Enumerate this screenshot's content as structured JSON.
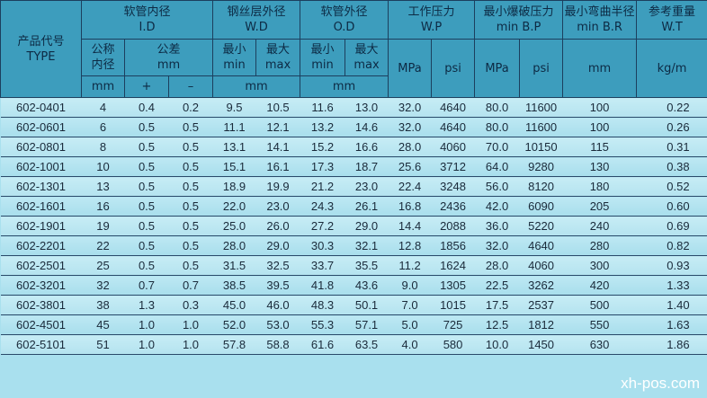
{
  "header": {
    "type_cn": "产品代号",
    "type_en": "TYPE",
    "id_cn": "软管内径",
    "id_en": "I.D",
    "wd_cn": "钢丝层外径",
    "wd_en": "W.D",
    "od_cn": "软管外径",
    "od_en": "O.D",
    "wp_cn": "工作压力",
    "wp_en": "W.P",
    "bp_cn": "最小爆破压力",
    "bp_en": "min B.P",
    "br_cn": "最小弯曲半径",
    "br_en": "min B.R",
    "wt_cn": "参考重量",
    "wt_en": "W.T",
    "nominal_cn1": "公称",
    "nominal_cn2": "内径",
    "tol_cn": "公差",
    "tol_unit": "mm",
    "min_cn": "最小",
    "min_en": "min",
    "max_cn": "最大",
    "max_en": "max",
    "mm": "mm",
    "plus": "+",
    "minus": "–",
    "mpa": "MPa",
    "psi": "psi",
    "kgm": "kg/m"
  },
  "rows": [
    [
      "602-0401",
      "4",
      "0.4",
      "0.2",
      "9.5",
      "10.5",
      "11.6",
      "13.0",
      "32.0",
      "4640",
      "80.0",
      "11600",
      "100",
      "0.22"
    ],
    [
      "602-0601",
      "6",
      "0.5",
      "0.5",
      "11.1",
      "12.1",
      "13.2",
      "14.6",
      "32.0",
      "4640",
      "80.0",
      "11600",
      "100",
      "0.26"
    ],
    [
      "602-0801",
      "8",
      "0.5",
      "0.5",
      "13.1",
      "14.1",
      "15.2",
      "16.6",
      "28.0",
      "4060",
      "70.0",
      "10150",
      "115",
      "0.31"
    ],
    [
      "602-1001",
      "10",
      "0.5",
      "0.5",
      "15.1",
      "16.1",
      "17.3",
      "18.7",
      "25.6",
      "3712",
      "64.0",
      "9280",
      "130",
      "0.38"
    ],
    [
      "602-1301",
      "13",
      "0.5",
      "0.5",
      "18.9",
      "19.9",
      "21.2",
      "23.0",
      "22.4",
      "3248",
      "56.0",
      "8120",
      "180",
      "0.52"
    ],
    [
      "602-1601",
      "16",
      "0.5",
      "0.5",
      "22.0",
      "23.0",
      "24.3",
      "26.1",
      "16.8",
      "2436",
      "42.0",
      "6090",
      "205",
      "0.60"
    ],
    [
      "602-1901",
      "19",
      "0.5",
      "0.5",
      "25.0",
      "26.0",
      "27.2",
      "29.0",
      "14.4",
      "2088",
      "36.0",
      "5220",
      "240",
      "0.69"
    ],
    [
      "602-2201",
      "22",
      "0.5",
      "0.5",
      "28.0",
      "29.0",
      "30.3",
      "32.1",
      "12.8",
      "1856",
      "32.0",
      "4640",
      "280",
      "0.82"
    ],
    [
      "602-2501",
      "25",
      "0.5",
      "0.5",
      "31.5",
      "32.5",
      "33.7",
      "35.5",
      "11.2",
      "1624",
      "28.0",
      "4060",
      "300",
      "0.93"
    ],
    [
      "602-3201",
      "32",
      "0.7",
      "0.7",
      "38.5",
      "39.5",
      "41.8",
      "43.6",
      "9.0",
      "1305",
      "22.5",
      "3262",
      "420",
      "1.33"
    ],
    [
      "602-3801",
      "38",
      "1.3",
      "0.3",
      "45.0",
      "46.0",
      "48.3",
      "50.1",
      "7.0",
      "1015",
      "17.5",
      "2537",
      "500",
      "1.40"
    ],
    [
      "602-4501",
      "45",
      "1.0",
      "1.0",
      "52.0",
      "53.0",
      "55.3",
      "57.1",
      "5.0",
      "725",
      "12.5",
      "1812",
      "550",
      "1.63"
    ],
    [
      "602-5101",
      "51",
      "1.0",
      "1.0",
      "57.8",
      "58.8",
      "61.6",
      "63.5",
      "4.0",
      "580",
      "10.0",
      "1450",
      "630",
      "1.86"
    ]
  ],
  "watermark": "xh-pos.com"
}
